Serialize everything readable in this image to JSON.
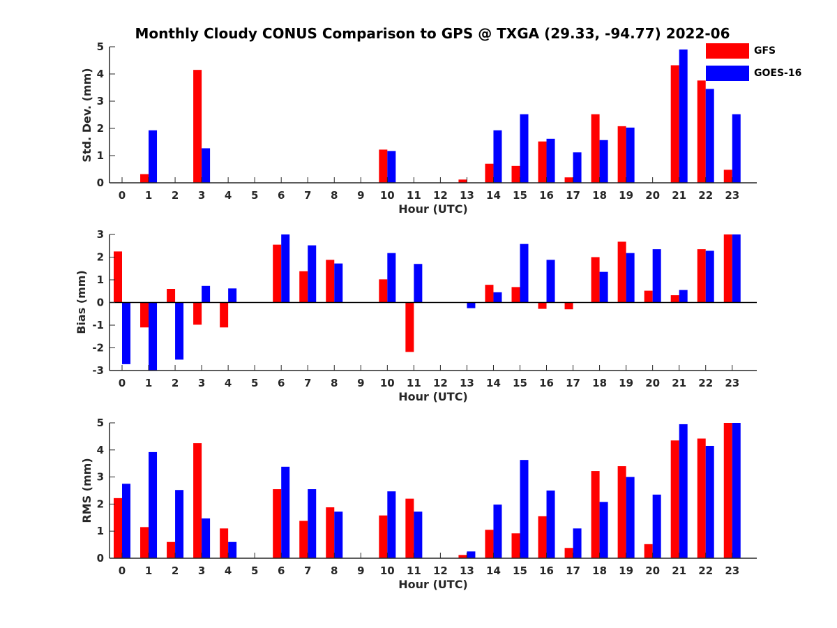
{
  "title": "Monthly Cloudy CONUS Comparison to GPS @ TXGA (29.33, -94.77) 2022-06",
  "colors": {
    "GFS": "#ff0000",
    "GOES-16": "#0000ff"
  },
  "chart_data": [
    {
      "type": "bar",
      "ylabel": "Std. Dev. (mm)",
      "xlabel": "Hour (UTC)",
      "ylim": [
        0,
        5
      ],
      "yticks": [
        0,
        1,
        2,
        3,
        4,
        5
      ],
      "categories": [
        "0",
        "1",
        "2",
        "3",
        "4",
        "5",
        "6",
        "7",
        "8",
        "9",
        "10",
        "11",
        "12",
        "13",
        "14",
        "15",
        "16",
        "17",
        "18",
        "19",
        "20",
        "21",
        "22",
        "23"
      ],
      "legend": "top-right",
      "series": [
        {
          "name": "GFS",
          "values": [
            0,
            0.32,
            0,
            4.15,
            0,
            0,
            0,
            0,
            0,
            0,
            1.22,
            0,
            0,
            0.12,
            0.7,
            0.62,
            1.52,
            0.2,
            2.52,
            2.08,
            0,
            4.32,
            3.76,
            0.48
          ]
        },
        {
          "name": "GOES-16",
          "values": [
            0,
            1.93,
            0,
            1.27,
            0,
            0,
            0,
            0,
            0,
            0,
            1.17,
            0,
            0,
            0,
            1.93,
            2.52,
            1.62,
            1.12,
            1.57,
            2.03,
            0,
            4.9,
            3.45,
            2.52
          ]
        }
      ]
    },
    {
      "type": "bar",
      "ylabel": "Bias (mm)",
      "xlabel": "Hour (UTC)",
      "ylim": [
        -3,
        3
      ],
      "yticks": [
        -3,
        -2,
        -1,
        0,
        1,
        2,
        3
      ],
      "categories": [
        "0",
        "1",
        "2",
        "3",
        "4",
        "5",
        "6",
        "7",
        "8",
        "9",
        "10",
        "11",
        "12",
        "13",
        "14",
        "15",
        "16",
        "17",
        "18",
        "19",
        "20",
        "21",
        "22",
        "23"
      ],
      "series": [
        {
          "name": "GFS",
          "values": [
            2.25,
            -1.1,
            0.6,
            -0.98,
            -1.1,
            0,
            2.55,
            1.38,
            1.88,
            0,
            1.02,
            -2.18,
            0,
            0,
            0.78,
            0.68,
            -0.28,
            -0.3,
            2.0,
            2.68,
            0.52,
            0.32,
            2.35,
            3.0
          ]
        },
        {
          "name": "GOES-16",
          "values": [
            -2.72,
            -3.0,
            -2.52,
            0.73,
            0.62,
            0,
            3.0,
            2.52,
            1.72,
            0,
            2.18,
            1.7,
            0,
            -0.25,
            0.45,
            2.58,
            1.88,
            0,
            1.35,
            2.18,
            2.35,
            0.55,
            2.28,
            3.0
          ]
        }
      ]
    },
    {
      "type": "bar",
      "ylabel": "RMS (mm)",
      "xlabel": "Hour (UTC)",
      "ylim": [
        0,
        5
      ],
      "yticks": [
        0,
        1,
        2,
        3,
        4,
        5
      ],
      "categories": [
        "0",
        "1",
        "2",
        "3",
        "4",
        "5",
        "6",
        "7",
        "8",
        "9",
        "10",
        "11",
        "12",
        "13",
        "14",
        "15",
        "16",
        "17",
        "18",
        "19",
        "20",
        "21",
        "22",
        "23"
      ],
      "series": [
        {
          "name": "GFS",
          "values": [
            2.22,
            1.15,
            0.6,
            4.25,
            1.1,
            0,
            2.55,
            1.38,
            1.88,
            0,
            1.58,
            2.2,
            0,
            0.12,
            1.05,
            0.92,
            1.55,
            0.38,
            3.22,
            3.4,
            0.52,
            4.35,
            4.42,
            5.0
          ]
        },
        {
          "name": "GOES-16",
          "values": [
            2.75,
            3.92,
            2.52,
            1.47,
            0.6,
            0,
            3.38,
            2.55,
            1.72,
            0,
            2.47,
            1.72,
            0,
            0.25,
            1.98,
            3.63,
            2.5,
            1.1,
            2.08,
            3.0,
            2.35,
            4.95,
            4.15,
            5.0
          ]
        }
      ]
    }
  ]
}
